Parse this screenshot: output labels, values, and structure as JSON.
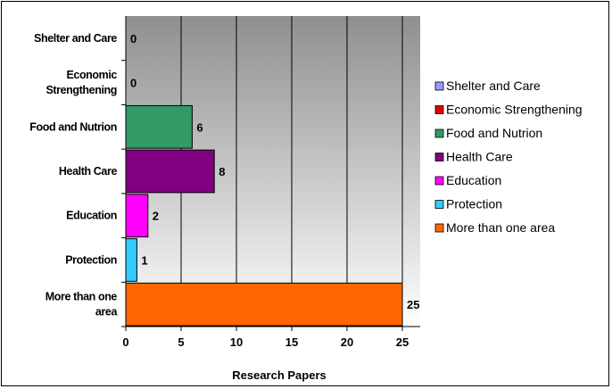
{
  "chart_data": {
    "type": "bar",
    "orientation": "horizontal",
    "categories": [
      "Shelter and Care",
      "Economic Strengthening",
      "Food and Nutrion",
      "Health Care",
      "Education",
      "Protection",
      "More than one area"
    ],
    "category_label_lines": [
      [
        "Shelter and Care"
      ],
      [
        "Economic",
        "Strengthening"
      ],
      [
        "Food and Nutrion"
      ],
      [
        "Health Care"
      ],
      [
        "Education"
      ],
      [
        "Protection"
      ],
      [
        "More than one",
        "area"
      ]
    ],
    "values": [
      0,
      0,
      6,
      8,
      2,
      1,
      25
    ],
    "colors": [
      "#9999ff",
      "#e00000",
      "#339966",
      "#800080",
      "#ff00ff",
      "#33ccff",
      "#ff6600"
    ],
    "xlabel": "Research Papers",
    "xlim": [
      0,
      25
    ],
    "xticks": [
      0,
      5,
      10,
      15,
      20,
      25
    ],
    "grid": "vertical",
    "plot_background": "#c0c0c0",
    "legend": {
      "position": "right",
      "entries": [
        "Shelter and Care",
        "Economic Strengthening",
        "Food and Nutrion",
        "Health Care",
        "Education",
        "Protection",
        "More than one area"
      ]
    }
  }
}
